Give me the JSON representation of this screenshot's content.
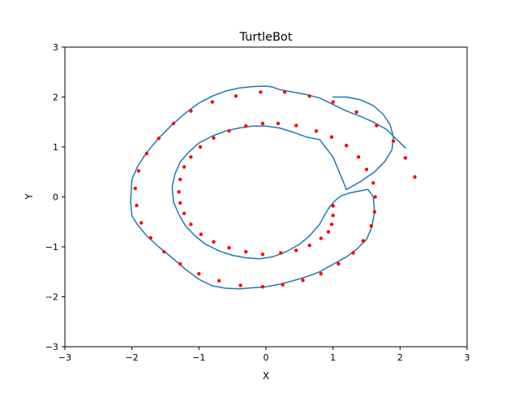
{
  "colors": {
    "path": "#1f77b4",
    "points": "#ff0000",
    "axes": "#000000",
    "background": "#ffffff"
  },
  "chart_data": {
    "type": "line",
    "title": "TurtleBot",
    "xlabel": "X",
    "ylabel": "Y",
    "xlim": [
      -3,
      3
    ],
    "ylim": [
      -3,
      3
    ],
    "xticks": [
      -3,
      -2,
      -1,
      0,
      1,
      2,
      3
    ],
    "yticks": [
      -3,
      -2,
      -1,
      0,
      1,
      2,
      3
    ],
    "xtick_labels": [
      "−3",
      "−2",
      "−1",
      "0",
      "1",
      "2",
      "3"
    ],
    "ytick_labels": [
      "−3",
      "−2",
      "−1",
      "0",
      "1",
      "2",
      "3"
    ],
    "grid": false,
    "series": [
      {
        "kind": "line",
        "color": "#1f77b4",
        "x": [
          1.0,
          1.2,
          1.4,
          1.6,
          1.75,
          1.85,
          1.9,
          1.88,
          1.78,
          1.62,
          1.4,
          1.2,
          1.0,
          0.8,
          0.6,
          0.4,
          0.2,
          0.0,
          -0.2,
          -0.4,
          -0.6,
          -0.8,
          -1.0,
          -1.15,
          -1.28,
          -1.36,
          -1.4,
          -1.38,
          -1.3,
          -1.2,
          -1.06,
          -0.9,
          -0.7,
          -0.5,
          -0.3,
          -0.1,
          0.1,
          0.3,
          0.5,
          0.65,
          0.8,
          0.88,
          0.95,
          1.0,
          1.05,
          1.12,
          1.25,
          1.4,
          1.52,
          1.6,
          1.62,
          1.58,
          1.5,
          1.35,
          1.2,
          1.0,
          0.8,
          0.6,
          0.4,
          0.2,
          0.0,
          -0.2,
          -0.4,
          -0.6,
          -0.8,
          -1.0,
          -1.2,
          -1.4,
          -1.6,
          -1.78,
          -1.92,
          -2.0,
          -2.02,
          -2.0,
          -1.92,
          -1.8,
          -1.62,
          -1.42,
          -1.2,
          -1.0,
          -0.8,
          -0.6,
          -0.4,
          -0.2,
          0.0,
          0.1,
          0.2,
          0.4,
          0.6,
          0.8,
          1.0,
          1.2,
          1.4,
          1.6,
          1.8,
          1.95,
          2.08
        ],
        "y": [
          2.0,
          2.0,
          1.95,
          1.83,
          1.65,
          1.45,
          1.2,
          0.95,
          0.72,
          0.5,
          0.3,
          0.15,
          0.8,
          1.15,
          1.2,
          1.3,
          1.38,
          1.42,
          1.42,
          1.38,
          1.32,
          1.22,
          1.08,
          0.9,
          0.7,
          0.45,
          0.2,
          -0.1,
          -0.35,
          -0.58,
          -0.78,
          -0.95,
          -1.08,
          -1.17,
          -1.22,
          -1.24,
          -1.2,
          -1.1,
          -0.95,
          -0.78,
          -0.55,
          -0.35,
          -0.2,
          -0.12,
          -0.05,
          0.02,
          0.08,
          0.12,
          0.15,
          0.0,
          -0.3,
          -0.6,
          -0.85,
          -1.05,
          -1.2,
          -1.35,
          -1.5,
          -1.6,
          -1.68,
          -1.75,
          -1.8,
          -1.82,
          -1.84,
          -1.83,
          -1.78,
          -1.65,
          -1.45,
          -1.22,
          -1.0,
          -0.78,
          -0.55,
          -0.38,
          -0.1,
          0.35,
          0.6,
          0.85,
          1.15,
          1.42,
          1.68,
          1.88,
          2.02,
          2.12,
          2.18,
          2.21,
          2.22,
          2.2,
          2.15,
          2.1,
          2.05,
          1.98,
          1.85,
          1.72,
          1.62,
          1.5,
          1.35,
          1.15,
          0.98
        ]
      },
      {
        "kind": "scatter",
        "color": "#ff0000",
        "x": [
          2.22,
          2.08,
          1.9,
          1.65,
          1.35,
          1.0,
          0.65,
          0.28,
          -0.08,
          -0.45,
          -0.8,
          -1.12,
          -1.38,
          -1.6,
          -1.78,
          -1.9,
          -1.95,
          -1.93,
          -1.86,
          -1.72,
          -1.52,
          -1.28,
          -1.0,
          -0.7,
          -0.38,
          -0.05,
          0.25,
          0.55,
          0.82,
          1.08,
          1.3,
          1.45,
          1.57,
          1.62,
          1.63,
          1.6,
          1.5,
          1.38,
          1.2,
          0.98,
          0.75,
          0.45,
          0.18,
          -0.05,
          -0.3,
          -0.55,
          -0.78,
          -0.98,
          -1.12,
          -1.22,
          -1.28,
          -1.3,
          -1.28,
          -1.22,
          -1.12,
          -0.97,
          -0.78,
          -0.55,
          -0.3,
          -0.05,
          0.22,
          0.45,
          0.65,
          0.82,
          0.93,
          0.98,
          1.0,
          1.0
        ],
        "y": [
          0.4,
          0.78,
          1.12,
          1.43,
          1.7,
          1.9,
          2.02,
          2.1,
          2.1,
          2.02,
          1.9,
          1.72,
          1.47,
          1.17,
          0.87,
          0.52,
          0.17,
          -0.17,
          -0.52,
          -0.82,
          -1.1,
          -1.34,
          -1.54,
          -1.68,
          -1.77,
          -1.8,
          -1.76,
          -1.67,
          -1.54,
          -1.34,
          -1.12,
          -0.88,
          -0.58,
          -0.3,
          0.0,
          0.28,
          0.55,
          0.8,
          1.03,
          1.2,
          1.32,
          1.43,
          1.47,
          1.47,
          1.42,
          1.32,
          1.18,
          1.0,
          0.8,
          0.6,
          0.35,
          0.1,
          -0.12,
          -0.33,
          -0.55,
          -0.75,
          -0.9,
          -1.02,
          -1.1,
          -1.15,
          -1.12,
          -1.07,
          -0.97,
          -0.83,
          -0.7,
          -0.55,
          -0.37,
          -0.18
        ]
      }
    ]
  }
}
